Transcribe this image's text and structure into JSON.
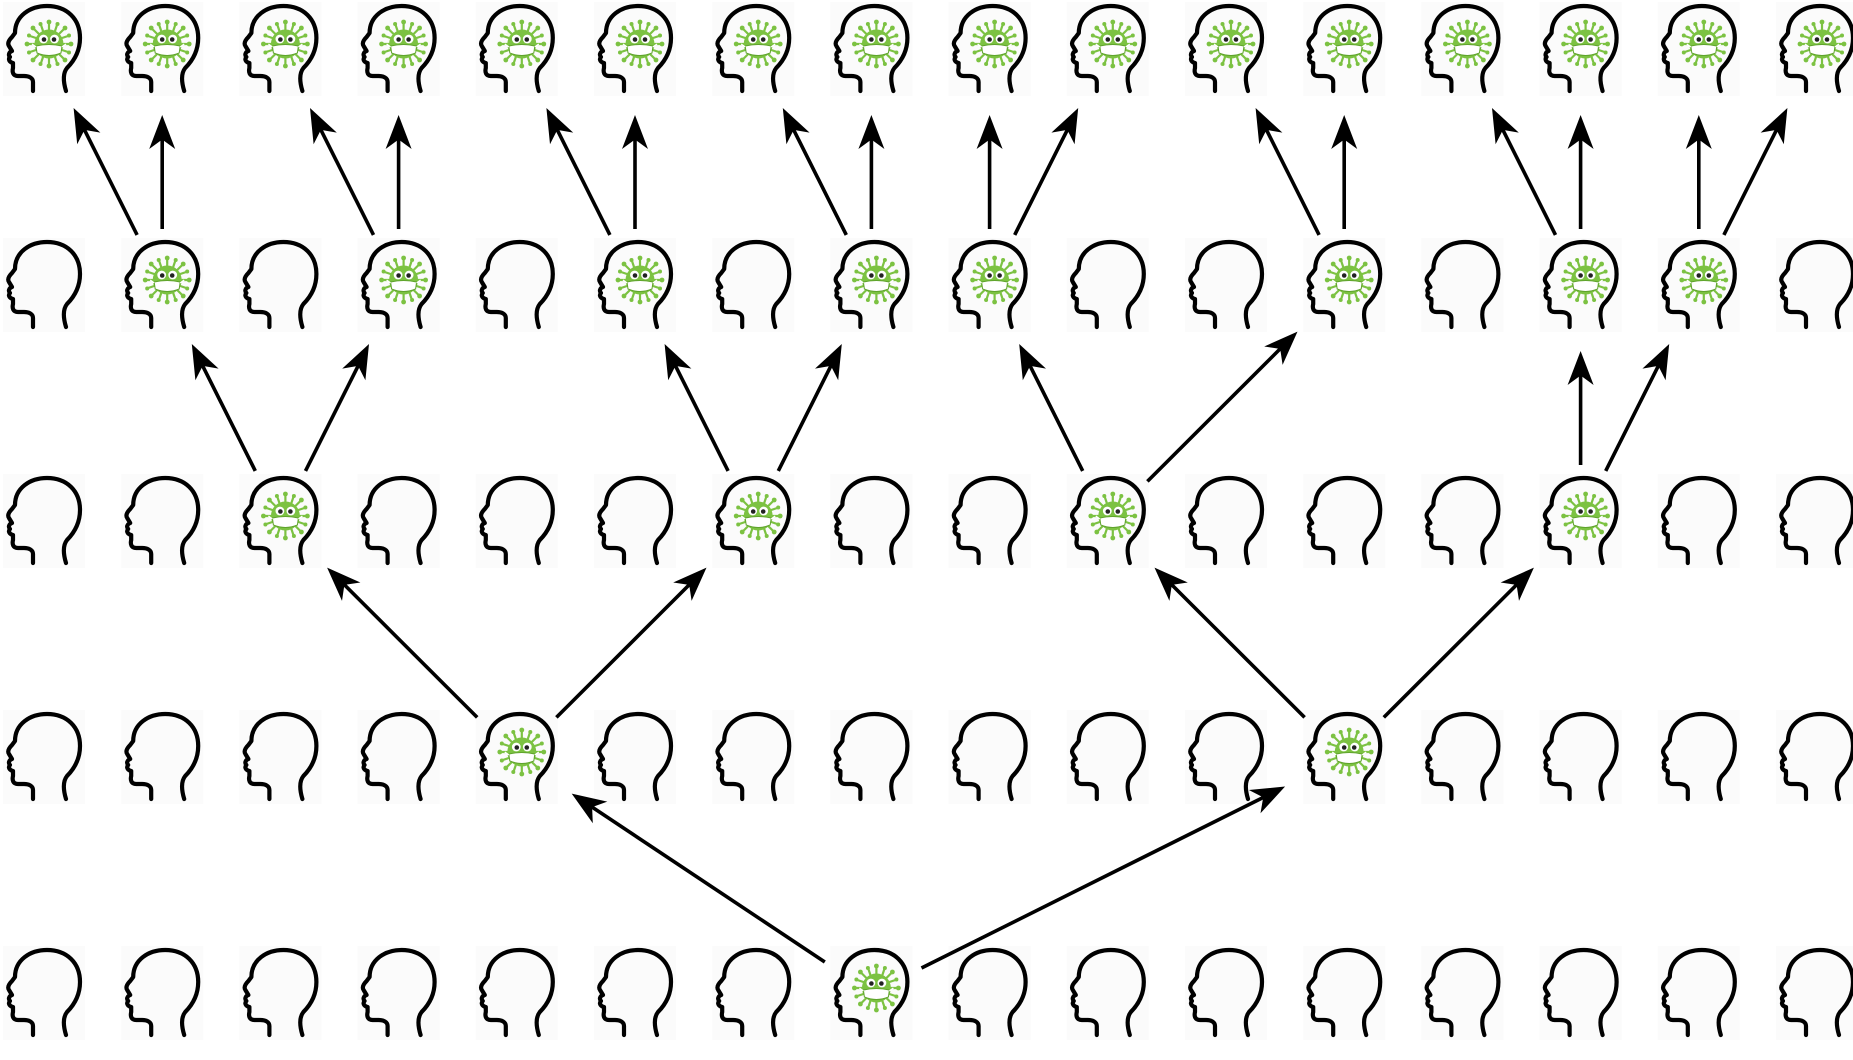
{
  "diagram": {
    "description_free": true,
    "grid": {
      "rows": 5,
      "columns": 16
    },
    "colors": {
      "outline": "#000000",
      "virus": "#7cc242",
      "virus_dark": "#5fa32c",
      "arrow": "#000000",
      "tile": "#fbfbfb"
    },
    "icons": {
      "healthy": "head-outline-icon",
      "infected": "virus-face-icon"
    },
    "rows": [
      {
        "level": 4,
        "infected": [
          0,
          1,
          2,
          3,
          4,
          5,
          6,
          7,
          8,
          9,
          10,
          11,
          12,
          13,
          14,
          15
        ]
      },
      {
        "level": 3,
        "infected": [
          1,
          3,
          5,
          7,
          8,
          11,
          13,
          14
        ]
      },
      {
        "level": 2,
        "infected": [
          2,
          6,
          9,
          13
        ]
      },
      {
        "level": 1,
        "infected": [
          4,
          11
        ]
      },
      {
        "level": 0,
        "infected": [
          7
        ]
      }
    ],
    "transmissions": [
      {
        "from": [
          0,
          7
        ],
        "to": [
          1,
          4
        ]
      },
      {
        "from": [
          0,
          7
        ],
        "to": [
          1,
          11
        ]
      },
      {
        "from": [
          1,
          4
        ],
        "to": [
          2,
          2
        ]
      },
      {
        "from": [
          1,
          4
        ],
        "to": [
          2,
          6
        ]
      },
      {
        "from": [
          1,
          11
        ],
        "to": [
          2,
          9
        ]
      },
      {
        "from": [
          1,
          11
        ],
        "to": [
          2,
          13
        ]
      },
      {
        "from": [
          2,
          2
        ],
        "to": [
          3,
          1
        ]
      },
      {
        "from": [
          2,
          2
        ],
        "to": [
          3,
          3
        ]
      },
      {
        "from": [
          2,
          6
        ],
        "to": [
          3,
          5
        ]
      },
      {
        "from": [
          2,
          6
        ],
        "to": [
          3,
          7
        ]
      },
      {
        "from": [
          2,
          9
        ],
        "to": [
          3,
          8
        ]
      },
      {
        "from": [
          2,
          9
        ],
        "to": [
          3,
          11
        ]
      },
      {
        "from": [
          2,
          13
        ],
        "to": [
          3,
          13
        ]
      },
      {
        "from": [
          2,
          13
        ],
        "to": [
          3,
          14
        ]
      },
      {
        "from": [
          3,
          1
        ],
        "to": [
          4,
          0
        ]
      },
      {
        "from": [
          3,
          1
        ],
        "to": [
          4,
          1
        ]
      },
      {
        "from": [
          3,
          3
        ],
        "to": [
          4,
          2
        ]
      },
      {
        "from": [
          3,
          3
        ],
        "to": [
          4,
          3
        ]
      },
      {
        "from": [
          3,
          5
        ],
        "to": [
          4,
          4
        ]
      },
      {
        "from": [
          3,
          5
        ],
        "to": [
          4,
          5
        ]
      },
      {
        "from": [
          3,
          7
        ],
        "to": [
          4,
          6
        ]
      },
      {
        "from": [
          3,
          7
        ],
        "to": [
          4,
          7
        ]
      },
      {
        "from": [
          3,
          8
        ],
        "to": [
          4,
          8
        ]
      },
      {
        "from": [
          3,
          8
        ],
        "to": [
          4,
          9
        ]
      },
      {
        "from": [
          3,
          11
        ],
        "to": [
          4,
          10
        ]
      },
      {
        "from": [
          3,
          11
        ],
        "to": [
          4,
          11
        ]
      },
      {
        "from": [
          3,
          13
        ],
        "to": [
          4,
          12
        ]
      },
      {
        "from": [
          3,
          13
        ],
        "to": [
          4,
          13
        ]
      },
      {
        "from": [
          3,
          14
        ],
        "to": [
          4,
          14
        ]
      },
      {
        "from": [
          3,
          14
        ],
        "to": [
          4,
          15
        ]
      }
    ]
  }
}
